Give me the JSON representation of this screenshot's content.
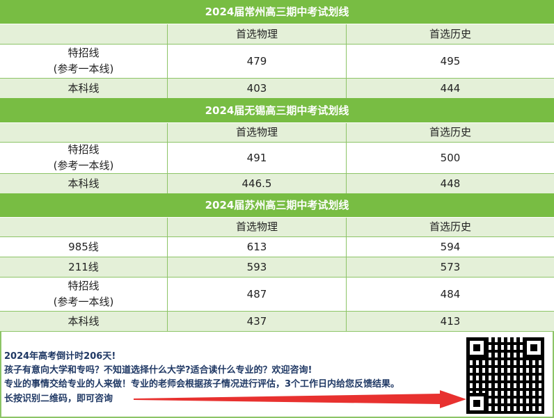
{
  "tables": [
    {
      "title": "2024届常州高三期中考试划线",
      "headers": [
        "",
        "首选物理",
        "首选历史"
      ],
      "rows": [
        {
          "label": "特招线",
          "sub": "(参考一本线)",
          "physics": "479",
          "history": "495"
        },
        {
          "label": "本科线",
          "physics": "403",
          "history": "444"
        }
      ]
    },
    {
      "title": "2024届无锡高三期中考试划线",
      "headers": [
        "",
        "首选物理",
        "首选历史"
      ],
      "rows": [
        {
          "label": "特招线",
          "sub": "(参考一本线)",
          "physics": "491",
          "history": "500"
        },
        {
          "label": "本科线",
          "physics": "446.5",
          "history": "448"
        }
      ]
    },
    {
      "title": "2024届苏州高三期中考试划线",
      "headers": [
        "",
        "首选物理",
        "首选历史"
      ],
      "rows": [
        {
          "label": "985线",
          "physics": "613",
          "history": "594"
        },
        {
          "label": "211线",
          "physics": "593",
          "history": "573"
        },
        {
          "label": "特招线",
          "sub": "(参考一本线)",
          "physics": "487",
          "history": "484"
        },
        {
          "label": "本科线",
          "physics": "437",
          "history": "413"
        }
      ]
    }
  ],
  "footer": {
    "line1": "2024年高考倒计时206天!",
    "line2": "孩子有意向大学和专吗？不知道选择什么大学?适合读什么专业的？欢迎咨询!",
    "line3": "专业的事情交给专业的人来做！专业的老师会根据孩子情况进行评估，3个工作日内给您反馈结果。",
    "line4": "长按识别二维码，即可咨询"
  },
  "colors": {
    "header_green": "#78bd43",
    "row_light": "#e4f0d8",
    "footer_text": "#1f3864",
    "arrow": "#e8312f"
  }
}
